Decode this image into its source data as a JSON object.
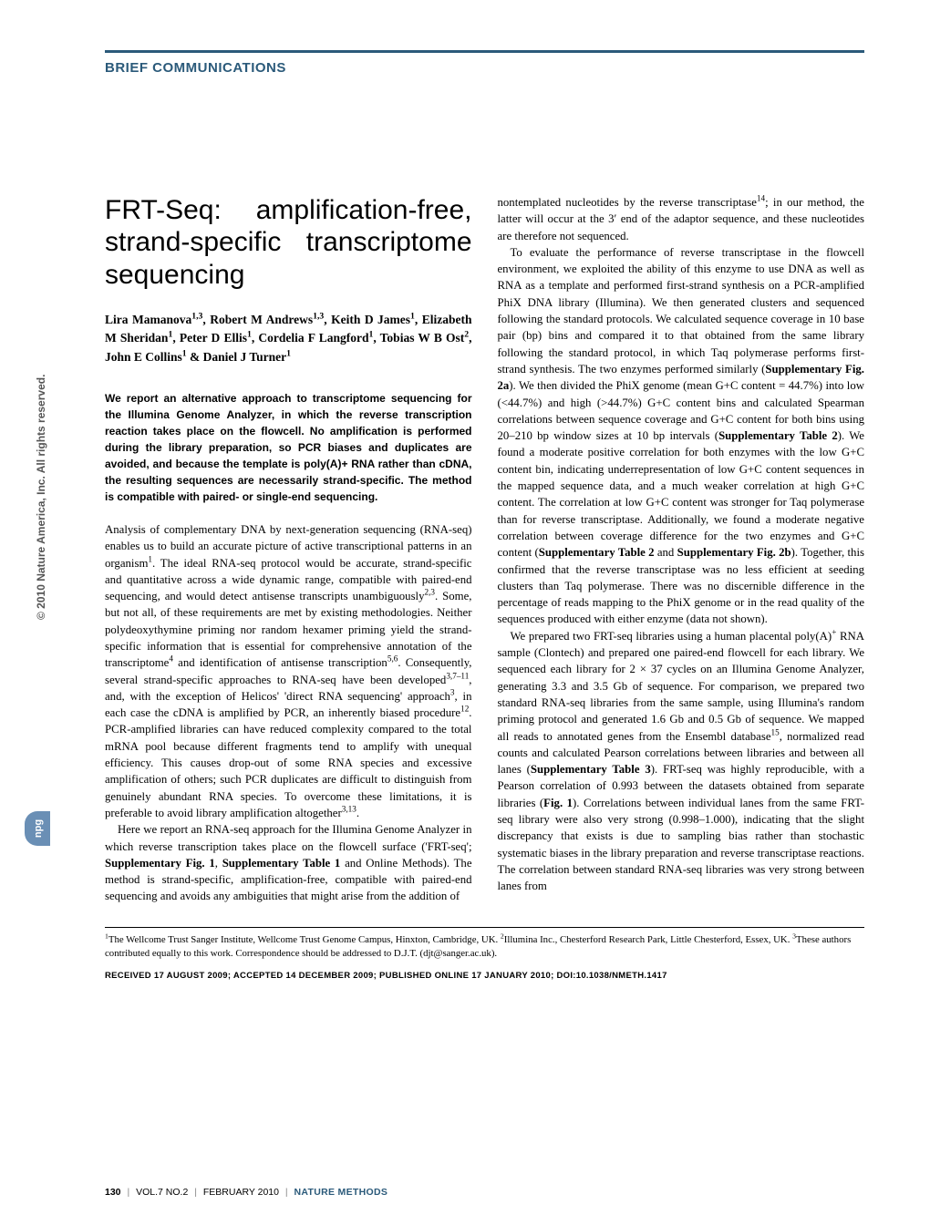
{
  "header": {
    "section": "BRIEF COMMUNICATIONS"
  },
  "title": "FRT-Seq: amplification-free, strand-specific transcriptome sequencing",
  "authors_html": "Lira Mamanova<sup>1,3</sup>, Robert M Andrews<sup>1,3</sup>, Keith D James<sup>1</sup>, Elizabeth M Sheridan<sup>1</sup>, Peter D Ellis<sup>1</sup>, Cordelia F Langford<sup>1</sup>, Tobias W B Ost<sup>2</sup>, John E Collins<sup>1</sup> & Daniel J Turner<sup>1</sup>",
  "abstract": "We report an alternative approach to transcriptome sequencing for the Illumina Genome Analyzer, in which the reverse transcription reaction takes place on the flowcell. No amplification is performed during the library preparation, so PCR biases and duplicates are avoided, and because the template is poly(A)+ RNA rather than cDNA, the resulting sequences are necessarily strand-specific. The method is compatible with paired- or single-end sequencing.",
  "left_paras": [
    "Analysis of complementary DNA by next-generation sequencing (RNA-seq) enables us to build an accurate picture of active transcriptional patterns in an organism<sup>1</sup>. The ideal RNA-seq protocol would be accurate, strand-specific and quantitative across a wide dynamic range, compatible with paired-end sequencing, and would detect antisense transcripts unambiguously<sup>2,3</sup>. Some, but not all, of these requirements are met by existing methodologies. Neither polydeoxythymine priming nor random hexamer priming yield the strand-specific information that is essential for comprehensive annotation of the transcriptome<sup>4</sup> and identification of antisense transcription<sup>5,6</sup>. Consequently, several strand-specific approaches to RNA-seq have been developed<sup>3,7–11</sup>, and, with the exception of Helicos' 'direct RNA sequencing' approach<sup>3</sup>, in each case the cDNA is amplified by PCR, an inherently biased procedure<sup>12</sup>. PCR-amplified libraries can have reduced complexity compared to the total mRNA pool because different fragments tend to amplify with unequal efficiency. This causes drop-out of some RNA species and excessive amplification of others; such PCR duplicates are difficult to distinguish from genuinely abundant RNA species. To overcome these limitations, it is preferable to avoid library amplification altogether<sup>3,13</sup>.",
    "Here we report an RNA-seq approach for the Illumina Genome Analyzer in which reverse transcription takes place on the flowcell surface ('FRT-seq'; <b>Supplementary Fig. 1</b>, <b>Supplementary Table 1</b> and Online Methods). The method is strand-specific, amplification-free, compatible with paired-end sequencing and avoids any ambiguities that might arise from the addition of"
  ],
  "right_paras": [
    "nontemplated nucleotides by the reverse transcriptase<sup>14</sup>; in our method, the latter will occur at the 3′ end of the adaptor sequence, and these nucleotides are therefore not sequenced.",
    "To evaluate the performance of reverse transcriptase in the flowcell environment, we exploited the ability of this enzyme to use DNA as well as RNA as a template and performed first-strand synthesis on a PCR-amplified PhiX DNA library (Illumina). We then generated clusters and sequenced following the standard protocols. We calculated sequence coverage in 10 base pair (bp) bins and compared it to that obtained from the same library following the standard protocol, in which Taq polymerase performs first-strand synthesis. The two enzymes performed similarly (<b>Supplementary Fig. 2a</b>). We then divided the PhiX genome (mean G+C content = 44.7%) into low (<44.7%) and high (>44.7%) G+C content bins and calculated Spearman correlations between sequence coverage and G+C content for both bins using 20–210 bp window sizes at 10 bp intervals (<b>Supplementary Table 2</b>). We found a moderate positive correlation for both enzymes with the low G+C content bin, indicating underrepresentation of low G+C content sequences in the mapped sequence data, and a much weaker correlation at high G+C content. The correlation at low G+C content was stronger for Taq polymerase than for reverse transcriptase. Additionally, we found a moderate negative correlation between coverage difference for the two enzymes and G+C content (<b>Supplementary Table 2</b> and <b>Supplementary Fig. 2b</b>). Together, this confirmed that the reverse transcriptase was no less efficient at seeding clusters than Taq polymerase. There was no discernible difference in the percentage of reads mapping to the PhiX genome or in the read quality of the sequences produced with either enzyme (data not shown).",
    "We prepared two FRT-seq libraries using a human placental poly(A)<sup>+</sup> RNA sample (Clontech) and prepared one paired-end flowcell for each library. We sequenced each library for 2 × 37 cycles on an Illumina Genome Analyzer, generating 3.3 and 3.5 Gb of sequence. For comparison, we prepared two standard RNA-seq libraries from the same sample, using Illumina's random priming protocol and generated 1.6 Gb and 0.5 Gb of sequence. We mapped all reads to annotated genes from the Ensembl database<sup>15</sup>, normalized read counts and calculated Pearson correlations between libraries and between all lanes (<b>Supplementary Table 3</b>). FRT-seq was highly reproducible, with a Pearson correlation of 0.993 between the datasets obtained from separate libraries (<b>Fig. 1</b>). Correlations between individual lanes from the same FRT-seq library were also very strong (0.998–1.000), indicating that the slight discrepancy that exists is due to sampling bias rather than stochastic systematic biases in the library preparation and reverse transcriptase reactions. The correlation between standard RNA-seq libraries was very strong between lanes from"
  ],
  "affiliations": "<sup>1</sup>The Wellcome Trust Sanger Institute, Wellcome Trust Genome Campus, Hinxton, Cambridge, UK. <sup>2</sup>Illumina Inc., Chesterford Research Park, Little Chesterford, Essex, UK. <sup>3</sup>These authors contributed equally to this work. Correspondence should be addressed to D.J.T. (djt@sanger.ac.uk).",
  "received": "RECEIVED 17 AUGUST 2009; ACCEPTED 14 DECEMBER 2009; PUBLISHED ONLINE 17 JANUARY 2010; DOI:10.1038/NMETH.1417",
  "footer": {
    "page": "130",
    "vol": "VOL.7 NO.2",
    "date": "FEBRUARY 2010",
    "journal": "NATURE METHODS"
  },
  "side_copyright": "© 2010 Nature America, Inc.  All rights reserved.",
  "npg": "npg"
}
